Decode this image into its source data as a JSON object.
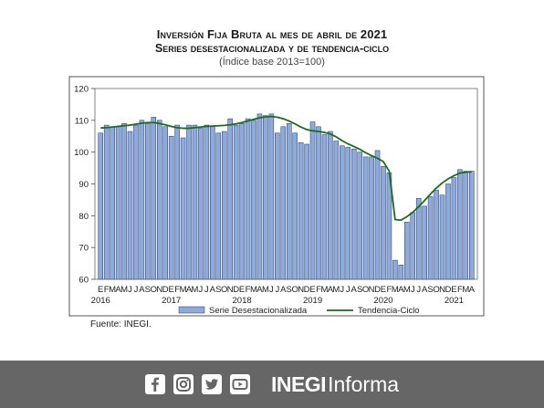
{
  "header": {
    "title": "Inversión Fija Bruta al mes de abril de 2021",
    "subtitle": "Series desestacionalizada y de tendencia-ciclo",
    "note": "(Índice base 2013=100)"
  },
  "source": "Fuente: INEGI.",
  "footer": {
    "brand_bold": "INEGI",
    "brand_light": "Informa",
    "icons": [
      "facebook-icon",
      "instagram-icon",
      "twitter-icon",
      "youtube-icon"
    ]
  },
  "colors": {
    "bar_fill": "#8EA9DB",
    "bar_stroke": "#1F3864",
    "line": "#1E6B1E",
    "plot_bg": "#ffffff",
    "footer_bg": "#666666"
  },
  "chart_data": {
    "type": "bar",
    "ylim": [
      60,
      120
    ],
    "yticks": [
      60,
      70,
      80,
      90,
      100,
      110,
      120
    ],
    "month_labels": [
      "E",
      "F",
      "M",
      "A",
      "M",
      "J",
      "J",
      "A",
      "S",
      "O",
      "N",
      "D",
      "E",
      "F",
      "M",
      "A",
      "M",
      "J",
      "J",
      "A",
      "S",
      "O",
      "N",
      "D",
      "E",
      "F",
      "M",
      "A",
      "M",
      "J",
      "J",
      "A",
      "S",
      "O",
      "N",
      "D",
      "E",
      "F",
      "M",
      "A",
      "M",
      "J",
      "J",
      "A",
      "S",
      "O",
      "N",
      "D",
      "E",
      "F",
      "M",
      "A",
      "M",
      "J",
      "J",
      "A",
      "S",
      "O",
      "N",
      "D",
      "E",
      "F",
      "M",
      "A"
    ],
    "year_labels": [
      {
        "label": "2016",
        "index": 0
      },
      {
        "label": "2017",
        "index": 12
      },
      {
        "label": "2018",
        "index": 24
      },
      {
        "label": "2019",
        "index": 36
      },
      {
        "label": "2020",
        "index": 48
      },
      {
        "label": "2021",
        "index": 60
      }
    ],
    "series": [
      {
        "name": "Serie Desestacionalizada",
        "type": "bar",
        "values": [
          106,
          108.5,
          108,
          108,
          109,
          106.5,
          108.5,
          110,
          109,
          111,
          110,
          108,
          105,
          108.5,
          104.5,
          108.5,
          108.5,
          107.5,
          108.5,
          108,
          106,
          106.5,
          110.5,
          108.5,
          109,
          110.5,
          110,
          112,
          111.5,
          112,
          106,
          108,
          109,
          106,
          103,
          102.5,
          109.5,
          108,
          105.5,
          106.5,
          103.5,
          102,
          101.5,
          101,
          100,
          98.5,
          98.5,
          100.5,
          95.5,
          93.5,
          66,
          64.5,
          78,
          81,
          85.5,
          83,
          86,
          88,
          86.5,
          90,
          92,
          94.5,
          94,
          94
        ]
      },
      {
        "name": "Tendencia-Ciclo",
        "type": "line",
        "values": [
          107.6,
          107.7,
          107.9,
          108.1,
          108.3,
          108.5,
          108.8,
          109.1,
          109.3,
          109.3,
          109,
          108.6,
          108.1,
          107.7,
          107.5,
          107.5,
          107.7,
          107.9,
          108.1,
          108.2,
          108.3,
          108.4,
          108.6,
          108.9,
          109.3,
          109.8,
          110.3,
          110.8,
          111.1,
          111.2,
          111,
          110.5,
          109.8,
          108.9,
          107.9,
          107.1,
          106.7,
          106.5,
          106.2,
          105.7,
          104.8,
          103.6,
          102.6,
          101.8,
          100.9,
          99.8,
          98.9,
          98.1,
          97,
          94,
          78.8,
          78.6,
          79.7,
          81.1,
          82.8,
          84.8,
          86.8,
          88.7,
          90.3,
          91.6,
          92.6,
          93.4,
          93.7,
          93.8
        ]
      }
    ]
  }
}
